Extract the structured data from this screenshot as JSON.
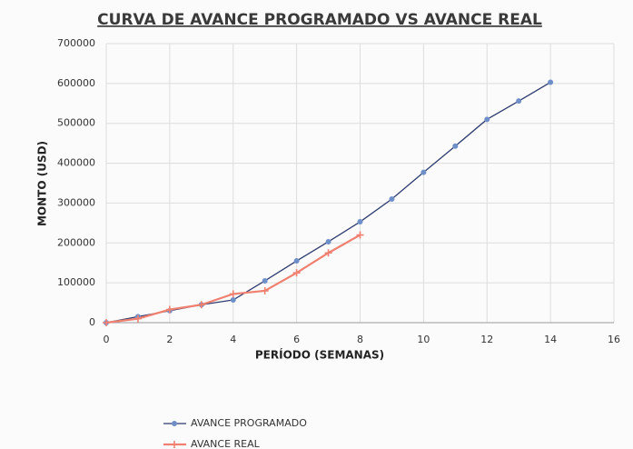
{
  "chart_data": {
    "type": "line",
    "title": "CURVA DE AVANCE PROGRAMADO VS AVANCE REAL",
    "x_label": "PERÍODO (SEMANAS)",
    "y_label": "MONTO (USD)",
    "x": [
      0,
      1,
      2,
      3,
      4,
      5,
      6,
      7,
      8,
      9,
      10,
      11,
      12,
      13,
      14
    ],
    "series": [
      {
        "name": "AVANCE PROGRAMADO",
        "color": "#2e3b6e",
        "marker_color": "#6f8fc9",
        "values": [
          0,
          15000,
          30000,
          45000,
          57000,
          105000,
          155000,
          203000,
          253000,
          310000,
          377000,
          443000,
          510000,
          556000,
          603000
        ]
      },
      {
        "name": "AVANCE REAL",
        "color": "#f08070",
        "marker_color": "#f08070",
        "values": [
          0,
          10000,
          33000,
          45000,
          72000,
          80000,
          125000,
          175000,
          220000,
          null,
          null,
          null,
          null,
          null,
          null
        ]
      }
    ],
    "xlim": [
      0,
      16
    ],
    "xticks": [
      0,
      2,
      4,
      6,
      8,
      10,
      12,
      14,
      16
    ],
    "ylim": [
      0,
      700000
    ],
    "yticks": [
      0,
      100000,
      200000,
      300000,
      400000,
      500000,
      600000,
      700000
    ],
    "grid": true,
    "legend": "bottom"
  }
}
